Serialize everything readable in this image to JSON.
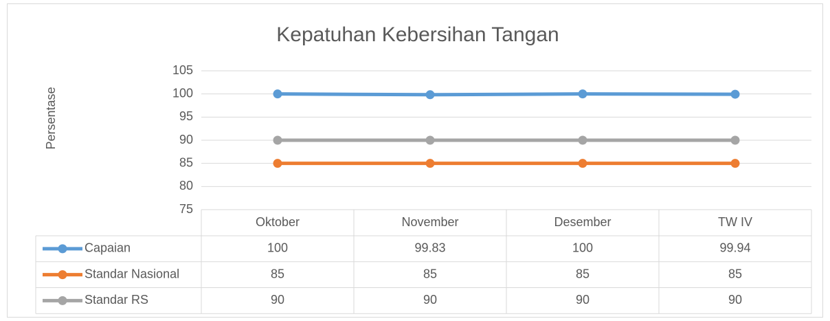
{
  "chart_data": {
    "type": "line",
    "title": "Kepatuhan Kebersihan Tangan",
    "y_label": "Persentase",
    "categories": [
      "Oktober",
      "November",
      "Desember",
      "TW IV"
    ],
    "series": [
      {
        "name": "Capaian",
        "color": "#5b9bd5",
        "values": [
          100,
          99.83,
          100,
          99.94
        ]
      },
      {
        "name": "Standar Nasional",
        "color": "#ed7d31",
        "values": [
          85,
          85,
          85,
          85
        ]
      },
      {
        "name": "Standar RS",
        "color": "#a5a5a5",
        "values": [
          90,
          90,
          90,
          90
        ]
      }
    ],
    "ylim": [
      75,
      105
    ],
    "yticks": [
      75,
      80,
      85,
      90,
      95,
      100,
      105
    ],
    "grid": true,
    "data_table": true
  }
}
